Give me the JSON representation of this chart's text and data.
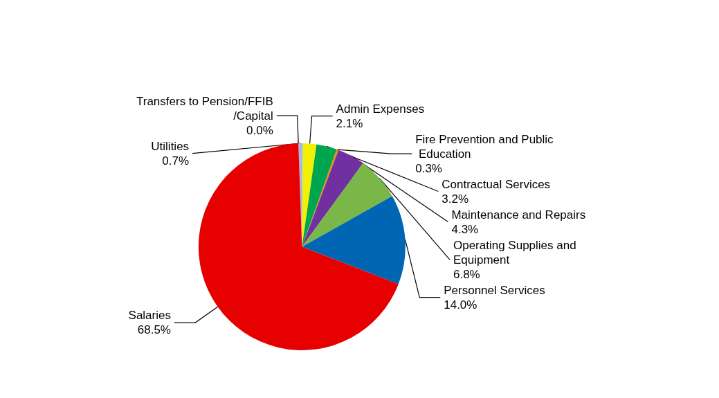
{
  "chart_data": {
    "type": "pie",
    "categories": [
      "Transfers to Pension/FFIB/Capital",
      "Utilities",
      "Admin Expenses",
      "Contractual Services",
      "Fire Prevention and Public Education",
      "Maintenance and Repairs",
      "Operating Supplies and Equipment",
      "Personnel Services",
      "Salaries"
    ],
    "values": [
      0.0,
      0.7,
      2.1,
      3.2,
      0.3,
      4.3,
      6.8,
      14.0,
      68.5
    ],
    "value_labels": [
      "0.0%",
      "0.7%",
      "2.1%",
      "3.2%",
      "0.3%",
      "4.3%",
      "6.8%",
      "14.0%",
      "68.5%"
    ],
    "colors": [
      "#4a7ebb",
      "#a6b9e0",
      "#f2f200",
      "#00a550",
      "#f08c00",
      "#7030a0",
      "#7ab648",
      "#0066b3",
      "#e60000"
    ]
  }
}
